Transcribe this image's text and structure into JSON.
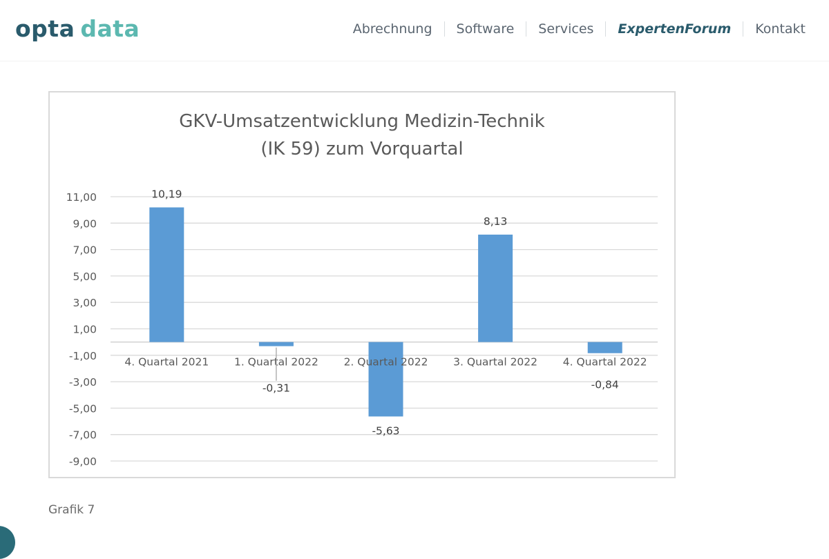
{
  "header": {
    "logo": {
      "part1": "opta",
      "part2": "data"
    },
    "nav": [
      {
        "label": "Abrechnung",
        "active": false
      },
      {
        "label": "Software",
        "active": false
      },
      {
        "label": "Services",
        "active": false
      },
      {
        "label": "ExpertenForum",
        "active": true
      },
      {
        "label": "Kontakt",
        "active": false
      }
    ]
  },
  "chart_data": {
    "type": "bar",
    "title_lines": [
      "GKV-Umsatzentwicklung Medizin-Technik",
      "(IK 59) zum Vorquartal"
    ],
    "categories": [
      "4. Quartal 2021",
      "1. Quartal 2022",
      "2. Quartal 2022",
      "3. Quartal 2022",
      "4. Quartal 2022"
    ],
    "values": [
      10.19,
      -0.31,
      -5.63,
      8.13,
      -0.84
    ],
    "value_labels": [
      "10,19",
      "-0,31",
      "-5,63",
      "8,13",
      "-0,84"
    ],
    "y_ticks": [
      "11,00",
      "9,00",
      "7,00",
      "5,00",
      "3,00",
      "1,00",
      "-1,00",
      "-3,00",
      "-5,00",
      "-7,00",
      "-9,00"
    ],
    "ylim": [
      -9,
      11
    ],
    "grid": true,
    "bar_color": "#5b9bd5"
  },
  "caption": "Grafik 7",
  "colors": {
    "brand_dark": "#2a5b6c",
    "brand_light": "#5cb8b0"
  }
}
